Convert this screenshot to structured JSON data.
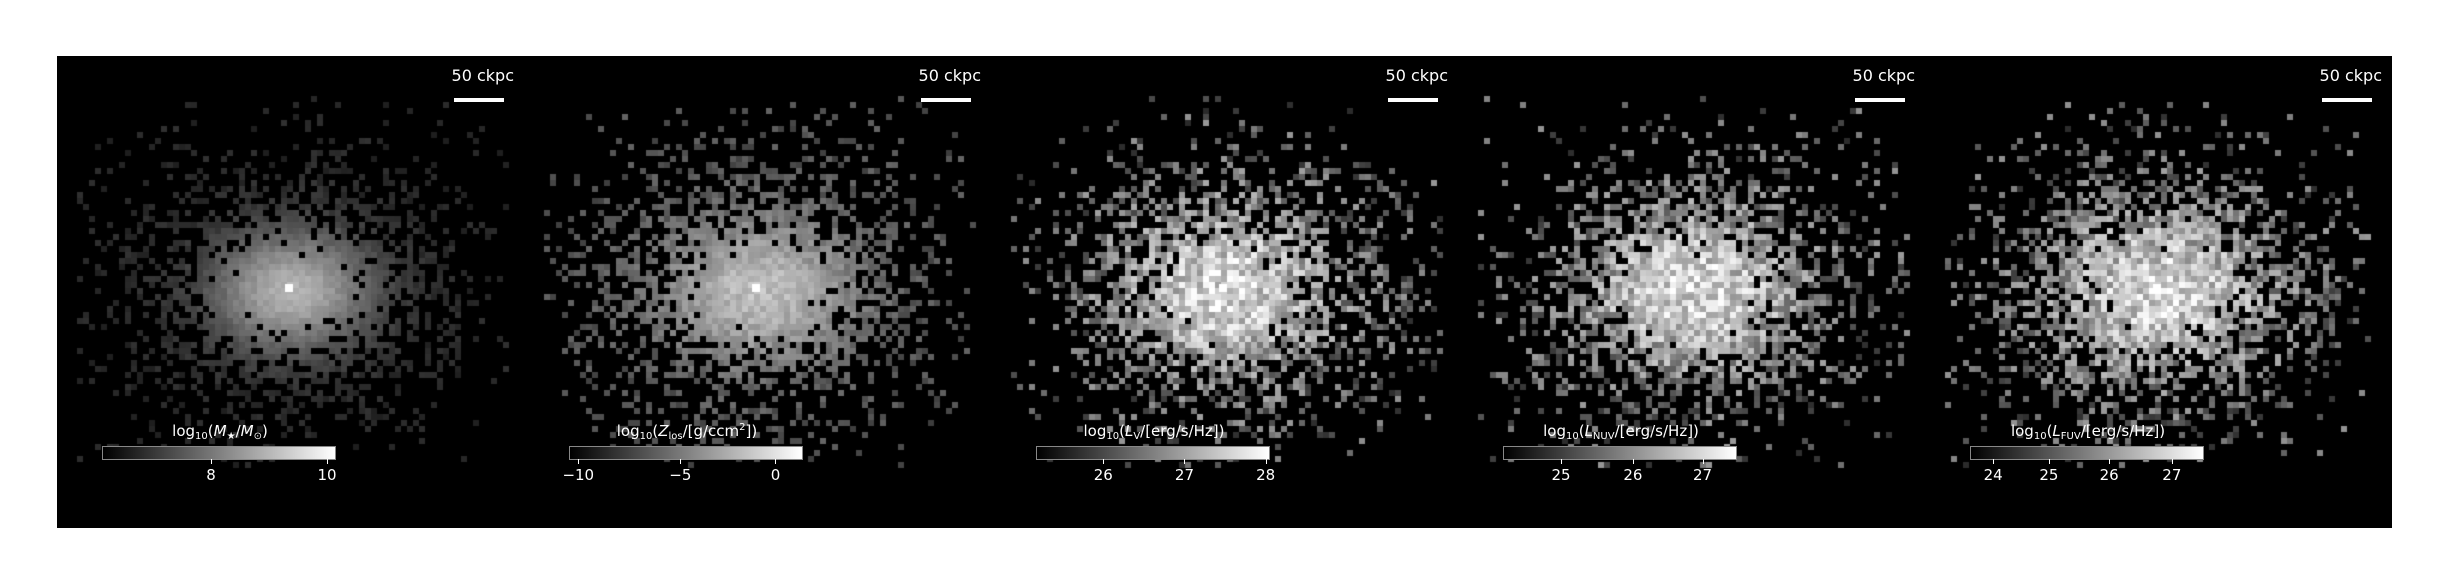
{
  "scalebar_label": "50 ckpc",
  "panels": [
    {
      "id": "mstar",
      "title_html": "log<sub>10</sub>(<i>M</i><sub>★</sub>/<i>M</i><sub>⊙</sub>)",
      "ticks": [
        {
          "label": "8",
          "frac": 0.47
        },
        {
          "label": "10",
          "frac": 0.97
        }
      ],
      "style": "smooth",
      "seed": 3
    },
    {
      "id": "z",
      "title_html": "log<sub>10</sub>(<i>Z</i><sub>los</sub>/[g/ccm<sup>2</sup>])",
      "ticks": [
        {
          "label": "−10",
          "frac": 0.04
        },
        {
          "label": "−5",
          "frac": 0.48
        },
        {
          "label": "0",
          "frac": 0.89
        }
      ],
      "style": "diffuse",
      "seed": 7
    },
    {
      "id": "lv",
      "title_html": "log<sub>10</sub>(<i>L</i><sub>V</sub>/[erg/s/Hz])",
      "ticks": [
        {
          "label": "26",
          "frac": 0.29
        },
        {
          "label": "27",
          "frac": 0.64
        },
        {
          "label": "28",
          "frac": 0.99
        }
      ],
      "style": "speckle",
      "seed": 11
    },
    {
      "id": "lnuv",
      "title_html": "log<sub>10</sub>(<i>L</i><sub>NUV</sub>/[erg/s/Hz])",
      "ticks": [
        {
          "label": "25",
          "frac": 0.25
        },
        {
          "label": "26",
          "frac": 0.56
        },
        {
          "label": "27",
          "frac": 0.86
        }
      ],
      "style": "speckle",
      "seed": 19
    },
    {
      "id": "lfuv",
      "title_html": "log<sub>10</sub>(<i>L</i><sub>FUV</sub>/[erg/s/Hz])",
      "ticks": [
        {
          "label": "24",
          "frac": 0.1
        },
        {
          "label": "25",
          "frac": 0.34
        },
        {
          "label": "26",
          "frac": 0.6
        },
        {
          "label": "27",
          "frac": 0.87
        }
      ],
      "style": "speckle",
      "seed": 23
    }
  ]
}
